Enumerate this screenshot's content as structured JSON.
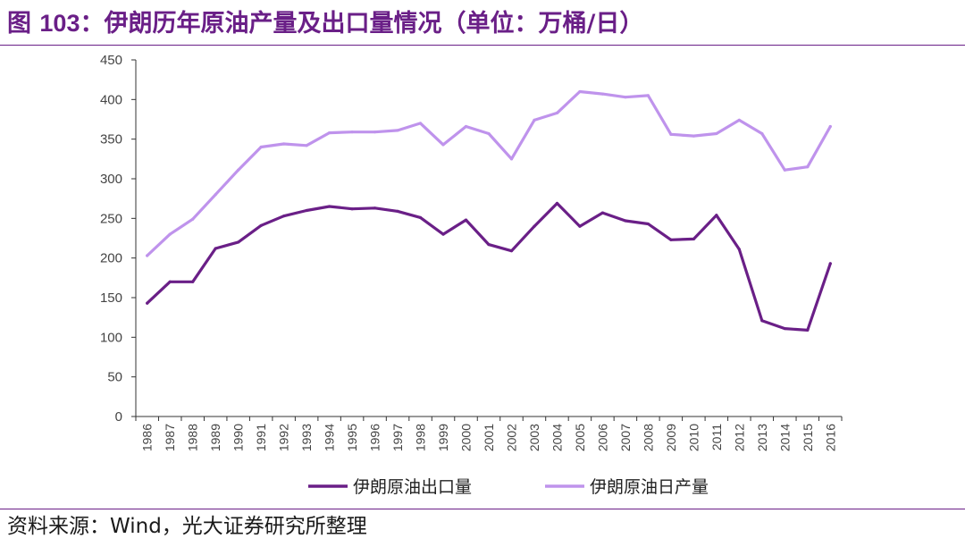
{
  "header": {
    "figure_label": "图",
    "figure_number": "103",
    "title_text": "：伊朗历年原油产量及出口量情况（单位：万桶/日）"
  },
  "footer": {
    "source_text": "资料来源：Wind，光大证券研究所整理"
  },
  "colors": {
    "accent": "#6a1f87",
    "export_series": "#6a1f87",
    "production_series": "#bf93ec"
  },
  "chart_data": {
    "type": "line",
    "title": "伊朗历年原油产量及出口量情况（单位：万桶/日）",
    "xlabel": "",
    "ylabel": "",
    "ylim": [
      0,
      450
    ],
    "yticks": [
      0,
      50,
      100,
      150,
      200,
      250,
      300,
      350,
      400,
      450
    ],
    "grid": false,
    "legend_position": "bottom",
    "categories": [
      "1986",
      "1987",
      "1988",
      "1989",
      "1990",
      "1991",
      "1992",
      "1993",
      "1994",
      "1995",
      "1996",
      "1997",
      "1998",
      "1999",
      "2000",
      "2001",
      "2002",
      "2003",
      "2004",
      "2005",
      "2006",
      "2007",
      "2008",
      "2009",
      "2010",
      "2011",
      "2012",
      "2013",
      "2014",
      "2015",
      "2016"
    ],
    "series": [
      {
        "name": "伊朗原油出口量",
        "values": [
          143,
          170,
          170,
          212,
          220,
          241,
          253,
          260,
          265,
          262,
          263,
          259,
          251,
          230,
          248,
          217,
          209,
          240,
          269,
          240,
          257,
          247,
          243,
          223,
          224,
          254,
          211,
          121,
          111,
          109,
          193
        ]
      },
      {
        "name": "伊朗原油日产量",
        "values": [
          203,
          230,
          249,
          280,
          311,
          340,
          344,
          342,
          358,
          359,
          359,
          361,
          370,
          343,
          366,
          357,
          325,
          374,
          383,
          410,
          407,
          403,
          405,
          356,
          354,
          357,
          374,
          357,
          311,
          315,
          366
        ]
      }
    ]
  }
}
